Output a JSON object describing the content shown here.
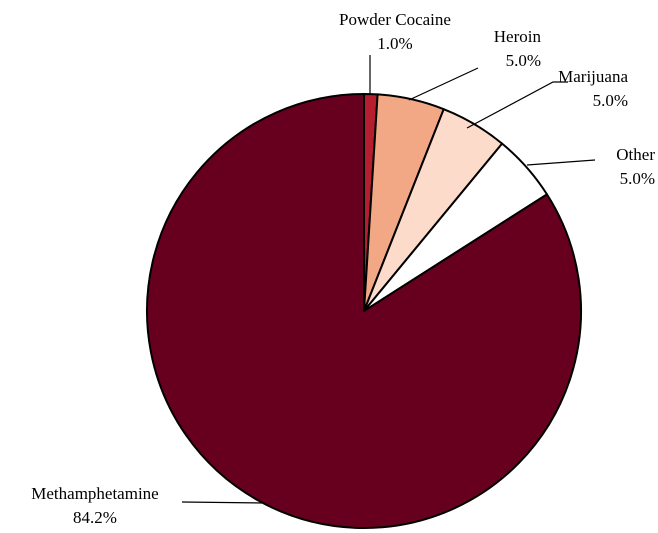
{
  "chart_data": {
    "type": "pie",
    "title": "",
    "slices": [
      {
        "label": "Powder Cocaine",
        "value": 1.0,
        "value_label": "1.0%",
        "color": "#B41E2E"
      },
      {
        "label": "Heroin",
        "value": 5.0,
        "value_label": "5.0%",
        "color": "#F2A885"
      },
      {
        "label": "Marijuana",
        "value": 5.0,
        "value_label": "5.0%",
        "color": "#FCDBCA"
      },
      {
        "label": "Other",
        "value": 5.0,
        "value_label": "5.0%",
        "color": "#FFFFFF"
      },
      {
        "label": "Methamphetamine",
        "value": 84.2,
        "value_label": "84.2%",
        "color": "#67001F"
      }
    ],
    "start": "12 o'clock",
    "direction": "clockwise",
    "legend": "none",
    "labels": "outside with leader lines"
  }
}
